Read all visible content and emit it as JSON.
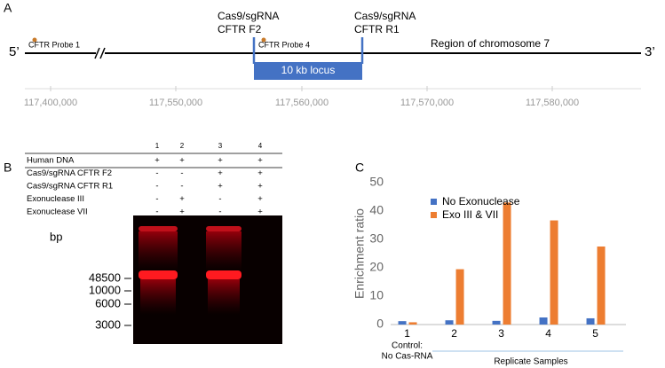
{
  "panel_a": {
    "label": "A",
    "five_prime": "5’",
    "three_prime": "3’",
    "probe_1": "CFTR Probe 1",
    "probe_4": "CFTR Probe 4",
    "cut_f2": [
      "Cas9/sgRNA",
      "CFTR F2"
    ],
    "cut_r1": [
      "Cas9/sgRNA",
      "CFTR R1"
    ],
    "locus": "10 kb locus",
    "region": "Region of chromosome 7",
    "coordinates": [
      "117,400,000",
      "117,550,000",
      "117,560,000",
      "117,570,000",
      "117,580,000"
    ]
  },
  "panel_b": {
    "label": "B",
    "lanes": [
      "1",
      "2",
      "3",
      "4"
    ],
    "rows": [
      {
        "name": "Human DNA",
        "marks": [
          "+",
          "+",
          "+",
          "+"
        ]
      },
      {
        "name": "Cas9/sgRNA CFTR F2",
        "marks": [
          "-",
          "-",
          "+",
          "+"
        ]
      },
      {
        "name": "Cas9/sgRNA CFTR R1",
        "marks": [
          "-",
          "-",
          "+",
          "+"
        ]
      },
      {
        "name": "Exonuclease III",
        "marks": [
          "-",
          "+",
          "-",
          "+"
        ]
      },
      {
        "name": "Exonuclease VII",
        "marks": [
          "-",
          "+",
          "-",
          "+"
        ]
      }
    ],
    "size_label": "bp",
    "sizes": [
      "48500",
      "10000",
      "6000",
      "3000"
    ]
  },
  "chart_data": {
    "type": "bar",
    "panel_label": "C",
    "ylabel": "Enrichment ratio",
    "categories": [
      "1",
      "2",
      "3",
      "4",
      "5"
    ],
    "series": [
      {
        "name": "No Exonuclease",
        "color": "#4472c4",
        "values": [
          1.2,
          1.5,
          1.3,
          2.5,
          2.2
        ]
      },
      {
        "name": "Exo III & VII",
        "color": "#ed7d31",
        "values": [
          0.8,
          19.5,
          43,
          36.7,
          27.5
        ]
      }
    ],
    "ylim": [
      0,
      50
    ],
    "yticks": [
      0,
      10,
      20,
      30,
      40,
      50
    ],
    "legend": "upper left",
    "control_label": [
      "Control:",
      "No Cas-RNA"
    ],
    "group_label": "Replicate Samples"
  }
}
